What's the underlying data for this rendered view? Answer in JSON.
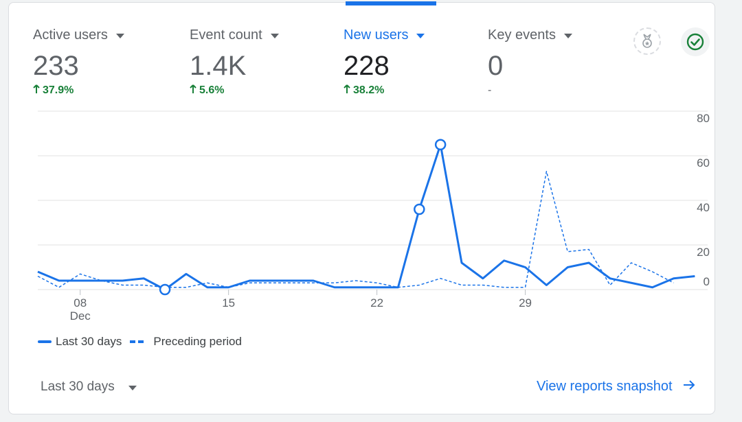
{
  "metrics": [
    {
      "label": "Active users",
      "value": "233",
      "change": "37.9%",
      "direction": "up"
    },
    {
      "label": "Event count",
      "value": "1.4K",
      "change": "5.6%",
      "direction": "up"
    },
    {
      "label": "New users",
      "value": "228",
      "change": "38.2%",
      "direction": "up",
      "selected": true
    },
    {
      "label": "Key events",
      "value": "0",
      "change": "-",
      "direction": "none"
    }
  ],
  "icons": {
    "badge": "award-badge-icon",
    "check": "check-circle-icon"
  },
  "colors": {
    "accent": "#1a73e8",
    "positive": "#188038",
    "muted": "#5f6368",
    "grid": "#e0e0e0"
  },
  "chart_data": {
    "type": "line",
    "x_ticks": [
      "08",
      "15",
      "22",
      "29"
    ],
    "x_tick_sublabel": "Dec",
    "y_ticks": [
      "0",
      "20",
      "40",
      "60",
      "80"
    ],
    "ylim": [
      0,
      80
    ],
    "series": [
      {
        "name": "Last 30 days",
        "style": "solid",
        "values": [
          8,
          4,
          4,
          4,
          4,
          5,
          0,
          7,
          1,
          1,
          4,
          4,
          4,
          4,
          1,
          1,
          1,
          1,
          36,
          65,
          12,
          5,
          13,
          10,
          2,
          10,
          12,
          5,
          3,
          1,
          5,
          6
        ]
      },
      {
        "name": "Preceding period",
        "style": "dashed",
        "values": [
          6,
          1,
          7,
          4,
          2,
          2,
          1,
          1,
          3,
          1,
          3,
          3,
          3,
          3,
          3,
          4,
          3,
          1,
          2,
          5,
          2,
          2,
          1,
          1,
          53,
          17,
          18,
          2,
          12,
          8,
          3
        ]
      }
    ],
    "highlight_points": [
      {
        "series": 0,
        "index": 6
      },
      {
        "series": 0,
        "index": 18
      },
      {
        "series": 0,
        "index": 19
      }
    ]
  },
  "legend": {
    "current": "Last 30 days",
    "previous": "Preceding period"
  },
  "footer": {
    "date_range": "Last 30 days",
    "link": "View reports snapshot"
  }
}
